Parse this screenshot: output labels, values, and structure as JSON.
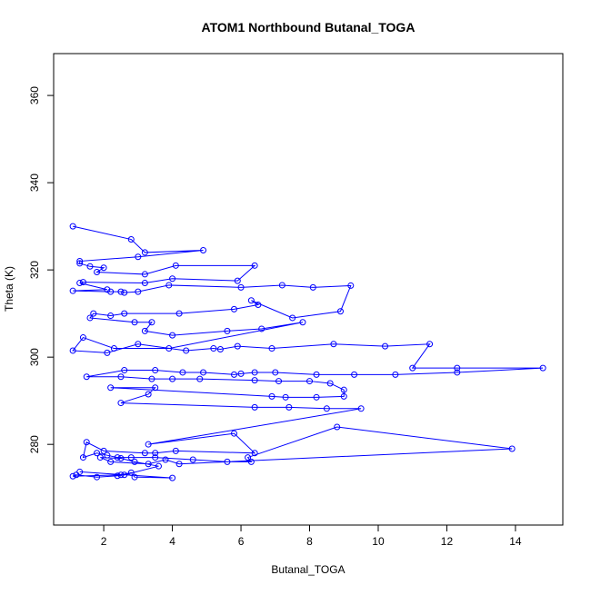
{
  "chart_data": {
    "type": "line",
    "title": "ATOM1 Northbound Butanal_TOGA",
    "x_label": "Butanal_TOGA",
    "y_label": "Theta (K)",
    "color": "#0000ff",
    "markers": true,
    "xlim": [
      0.54,
      15.38
    ],
    "ylim": [
      261.5,
      369.6
    ],
    "xticks": [
      2,
      4,
      6,
      8,
      10,
      12,
      14
    ],
    "yticks": [
      280,
      300,
      320,
      340,
      360
    ],
    "x": [
      1.1,
      2.8,
      3.2,
      4.9,
      3.0,
      1.3,
      1.3,
      1.6,
      2.0,
      1.8,
      3.2,
      4.1,
      6.4,
      5.9,
      4.0,
      3.2,
      1.4,
      1.3,
      2.1,
      1.1,
      2.2,
      2.5,
      2.6,
      3.0,
      3.9,
      6.0,
      7.2,
      8.1,
      9.2,
      8.9,
      7.5,
      6.3,
      6.5,
      5.8,
      4.2,
      2.6,
      2.2,
      1.7,
      1.6,
      2.9,
      3.4,
      3.2,
      4.0,
      5.6,
      6.6,
      7.8,
      3.9,
      2.3,
      1.4,
      1.1,
      2.1,
      3.0,
      4.4,
      5.2,
      5.4,
      5.9,
      6.9,
      8.7,
      10.2,
      11.5,
      11.0,
      12.3,
      14.8,
      12.3,
      10.5,
      9.3,
      8.2,
      7.0,
      6.4,
      6.0,
      5.8,
      4.9,
      4.3,
      3.5,
      2.6,
      1.5,
      2.5,
      3.4,
      4.0,
      4.8,
      6.4,
      7.1,
      8.0,
      8.6,
      9.0,
      9.0,
      8.2,
      7.3,
      6.9,
      2.2,
      3.5,
      3.3,
      2.5,
      6.4,
      7.4,
      8.5,
      9.5,
      3.3,
      5.8,
      6.4,
      4.1,
      3.5,
      3.2,
      2.0,
      1.5,
      1.4,
      1.8,
      2.1,
      2.4,
      2.8,
      3.5,
      4.6,
      5.6,
      6.3,
      6.2,
      8.8,
      13.9,
      4.2,
      3.8,
      3.3,
      2.2,
      1.9,
      2.5,
      2.9,
      3.6,
      2.6,
      2.4,
      1.8,
      1.2,
      1.1,
      2.5,
      2.8,
      2.9,
      4.0,
      1.3
    ],
    "values": [
      330,
      327,
      324,
      324.5,
      323,
      322,
      321.5,
      320.8,
      320.5,
      319.5,
      319,
      321,
      321,
      317.5,
      318,
      317,
      317.2,
      317,
      315.5,
      315.2,
      315,
      315,
      314.8,
      315,
      316.5,
      316,
      316.5,
      316,
      316.4,
      310.5,
      309,
      313,
      312,
      311,
      310,
      310,
      309.5,
      310,
      309,
      308,
      308,
      306,
      305,
      306,
      306.5,
      308,
      302,
      302,
      304.5,
      301.5,
      301,
      303,
      301.5,
      302,
      301.8,
      302.5,
      302,
      303,
      302.5,
      303,
      297.5,
      297.5,
      297.5,
      296.5,
      296,
      296,
      296,
      296.5,
      296.5,
      296.2,
      296,
      296.5,
      296.5,
      297,
      297,
      295.5,
      295.5,
      295,
      295,
      295,
      294.7,
      294.5,
      294.5,
      294,
      292.5,
      291,
      290.8,
      290.8,
      291,
      293,
      293,
      291.5,
      289.5,
      288.5,
      288.5,
      288.2,
      288.2,
      280,
      282.5,
      278,
      278.5,
      278,
      278,
      278.5,
      280.5,
      277,
      278,
      277.5,
      277,
      277,
      277,
      276.5,
      276,
      276,
      277,
      284,
      279,
      275.5,
      276.5,
      275.5,
      276,
      277,
      276.8,
      276,
      275,
      273,
      272.8,
      272.5,
      273,
      272.7,
      273,
      273.5,
      272.5,
      272.3,
      273.7
    ]
  }
}
